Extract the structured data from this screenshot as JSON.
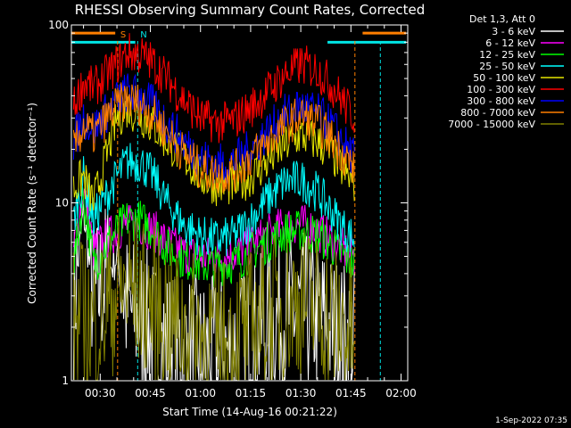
{
  "colors": {
    "background": "#000000",
    "axes": "#ffffff",
    "attenuator_marker": "#ff7f00",
    "saa_marker": "#00e5e5"
  },
  "stamp": "1-Sep-2022 07:35",
  "chart_data": {
    "type": "line",
    "title": "RHESSI Observing Summary Count Rates, Corrected",
    "xlabel": "Start Time (14-Aug-16 00:21:22)",
    "ylabel": "Corrected Count Rate (s⁻¹ detector⁻¹)",
    "yscale": "log",
    "ylim": [
      1,
      100
    ],
    "xlim_minutes": [
      21.37,
      122
    ],
    "x_tick_labels": [
      "00:30",
      "00:45",
      "01:00",
      "01:15",
      "01:30",
      "01:45",
      "02:00"
    ],
    "x_tick_minutes": [
      30,
      45,
      60,
      75,
      90,
      105,
      120
    ],
    "y_tick_labels": [
      "1",
      "10",
      "100"
    ],
    "y_tick_values": [
      1,
      10,
      100
    ],
    "legend_title": "Det 1,3, Att 0",
    "legend_position": "right, outside plot",
    "grid": false,
    "markers": [
      {
        "label": "S",
        "color": "#ff7f00",
        "times_minutes": [
          35.2,
          106.2
        ]
      },
      {
        "label": "N",
        "color": "#00e5e5",
        "times_minutes": [
          41.2,
          113.8
        ]
      }
    ],
    "marker_bars": [
      {
        "color": "#ff7f00",
        "y": 90,
        "from_minutes": 21.37,
        "to_minutes": 34.5
      },
      {
        "color": "#ff7f00",
        "y": 90,
        "from_minutes": 108.5,
        "to_minutes": 121.5
      },
      {
        "color": "#00e5e5",
        "y": 80,
        "from_minutes": 21.37,
        "to_minutes": 40.5
      },
      {
        "color": "#00e5e5",
        "y": 80,
        "from_minutes": 98,
        "to_minutes": 121.5
      }
    ],
    "series": [
      {
        "name": "3 - 6 keV",
        "color": "#ffffff",
        "x": [
          22,
          25,
          28,
          35,
          38,
          42,
          46,
          50,
          55,
          60,
          65,
          70,
          75,
          80,
          85,
          90,
          95,
          100,
          104,
          106
        ],
        "y": [
          2.6,
          9,
          2.8,
          5,
          2.5,
          2.2,
          1.8,
          1.6,
          1.5,
          1.4,
          1.4,
          1.5,
          1.7,
          2,
          2.3,
          2.5,
          2.3,
          1.9,
          1.7,
          1.6
        ]
      },
      {
        "name": "6 - 12 keV",
        "color": "#ff00ff",
        "x": [
          22,
          25,
          28,
          35,
          38,
          42,
          46,
          50,
          55,
          60,
          65,
          70,
          75,
          80,
          85,
          90,
          95,
          100,
          104,
          106
        ],
        "y": [
          5.5,
          12,
          5.5,
          7,
          7.5,
          7.5,
          7,
          6,
          5.2,
          5,
          5,
          5.2,
          5.8,
          6.6,
          7.4,
          7.6,
          7,
          6,
          5.2,
          5
        ]
      },
      {
        "name": "12 - 25 keV",
        "color": "#00ff00",
        "x": [
          22,
          25,
          28,
          35,
          38,
          42,
          46,
          50,
          55,
          60,
          65,
          70,
          75,
          80,
          85,
          90,
          95,
          100,
          104,
          106
        ],
        "y": [
          4.5,
          11,
          4.5,
          7,
          8,
          8,
          7,
          5.5,
          4.8,
          4.5,
          4.4,
          4.6,
          5.3,
          6,
          6.8,
          7,
          6.6,
          5.6,
          4.8,
          4.5
        ]
      },
      {
        "name": "25 - 50 keV",
        "color": "#00ffff",
        "x": [
          22,
          25,
          28,
          35,
          38,
          42,
          46,
          50,
          55,
          60,
          65,
          70,
          75,
          80,
          85,
          90,
          95,
          100,
          104,
          106
        ],
        "y": [
          8,
          14,
          8,
          14,
          17,
          17,
          14,
          10,
          7.5,
          6.5,
          6.2,
          6.5,
          8,
          10.5,
          13,
          13.5,
          11.5,
          8.5,
          6.8,
          6.3
        ]
      },
      {
        "name": "50 - 100 keV",
        "color": "#e5e500",
        "x": [
          22,
          25,
          28,
          35,
          38,
          42,
          46,
          50,
          55,
          60,
          65,
          70,
          75,
          80,
          85,
          90,
          95,
          100,
          104,
          106
        ],
        "y": [
          12,
          14,
          10,
          30,
          34,
          31,
          27,
          22,
          18,
          14,
          12.5,
          12.5,
          14,
          17,
          21,
          24,
          22,
          18,
          14,
          13
        ]
      },
      {
        "name": "100 - 300 keV",
        "color": "#ff0000",
        "x": [
          22,
          25,
          28,
          35,
          38,
          42,
          46,
          50,
          55,
          60,
          65,
          70,
          75,
          80,
          85,
          90,
          95,
          100,
          104,
          106
        ],
        "y": [
          34,
          48,
          44,
          60,
          70,
          68,
          61,
          50,
          38,
          30,
          28,
          29,
          34,
          42,
          52,
          60,
          56,
          44,
          34,
          31
        ]
      },
      {
        "name": "300 - 800 keV",
        "color": "#0000ff",
        "x": [
          22,
          25,
          28,
          35,
          38,
          42,
          46,
          50,
          55,
          60,
          65,
          70,
          75,
          80,
          85,
          90,
          95,
          100,
          104,
          106
        ],
        "y": [
          22,
          30,
          26,
          38,
          42,
          40,
          35,
          28,
          22,
          18,
          16.5,
          17,
          20,
          25,
          31,
          35,
          32,
          26,
          20,
          18
        ]
      },
      {
        "name": "800 - 7000 keV",
        "color": "#ff7f00",
        "x": [
          22,
          25,
          28,
          35,
          38,
          42,
          46,
          50,
          55,
          60,
          65,
          70,
          75,
          80,
          85,
          90,
          95,
          100,
          104,
          106
        ],
        "y": [
          20,
          27,
          24,
          35,
          38,
          36,
          31,
          25,
          19,
          15.5,
          14.5,
          15,
          18,
          22,
          27,
          31,
          28,
          22,
          17.5,
          15.5
        ]
      },
      {
        "name": "7000 - 15000 keV",
        "color": "#808000",
        "x": [
          22,
          25,
          28,
          35,
          38,
          42,
          46,
          50,
          55,
          60,
          65,
          70,
          75,
          80,
          85,
          90,
          95,
          100,
          104,
          106
        ],
        "y": [
          2,
          2.3,
          2,
          3.2,
          3.3,
          3.1,
          2.7,
          2.3,
          2,
          1.8,
          1.7,
          1.8,
          2,
          2.3,
          2.6,
          2.8,
          2.6,
          2.2,
          1.9,
          1.8
        ]
      }
    ]
  }
}
